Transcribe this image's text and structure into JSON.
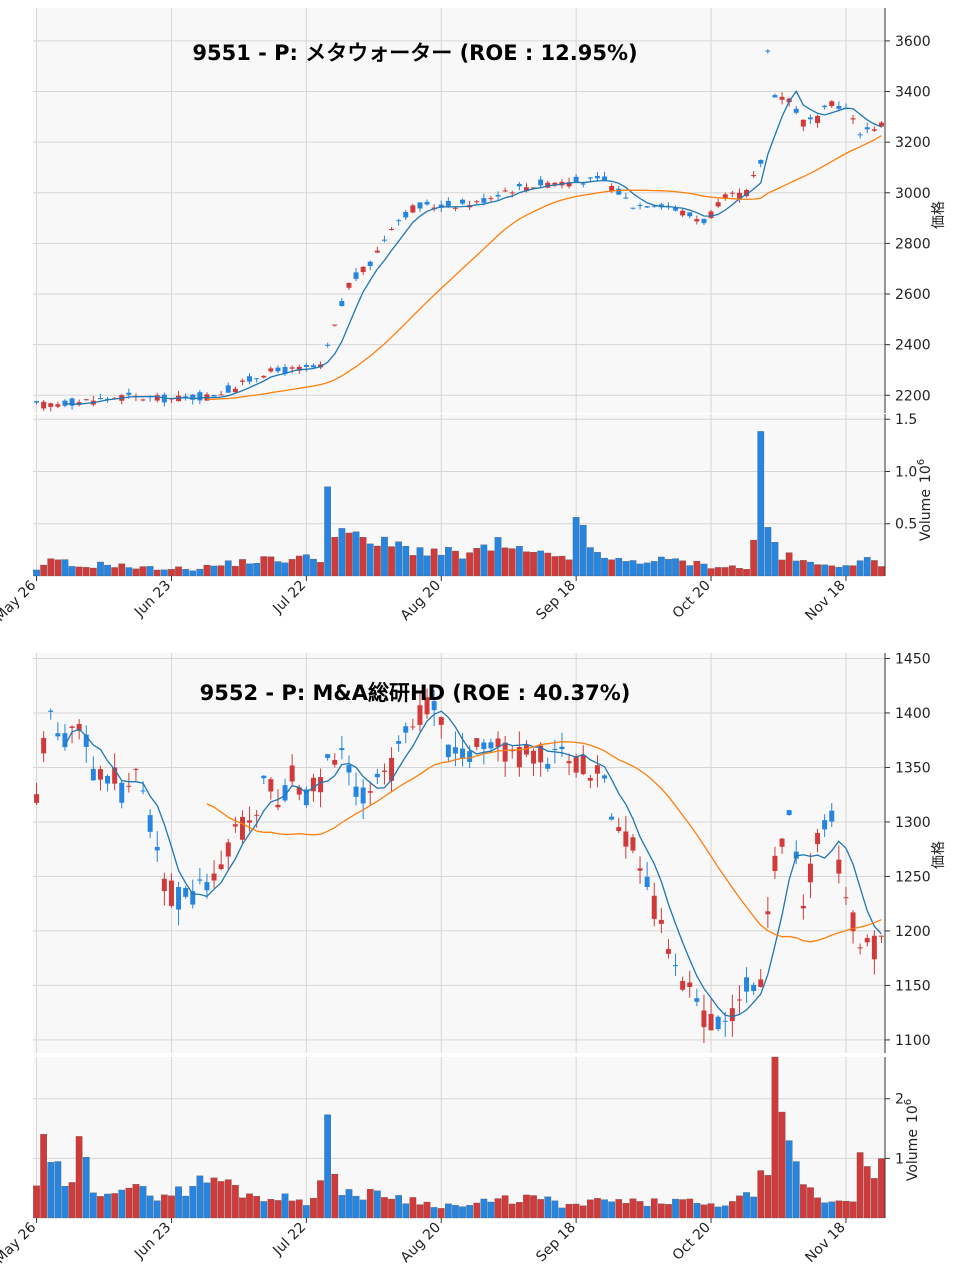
{
  "charts": [
    {
      "title": "9551 - P: メタウォーター (ROE : 12.95%)",
      "price_axis_label": "価格",
      "volume_axis_label": "Volume",
      "volume_axis_exp": "10",
      "volume_axis_exp_power": "6",
      "price_ticks": [
        "2200",
        "2400",
        "2600",
        "2800",
        "3000",
        "3200",
        "3400",
        "3600"
      ],
      "volume_ticks": [
        "0.5",
        "1.0",
        "1.5"
      ],
      "date_ticks": [
        "May 26",
        "Jun 23",
        "Jul 22",
        "Aug 20",
        "Sep 18",
        "Oct 20",
        "Nov 18"
      ]
    },
    {
      "title": "9552 - P: M&A総研HD (ROE : 40.37%)",
      "price_axis_label": "価格",
      "volume_axis_label": "Volume",
      "volume_axis_exp": "10",
      "volume_axis_exp_power": "6",
      "price_ticks": [
        "1100",
        "1150",
        "1200",
        "1250",
        "1300",
        "1350",
        "1400",
        "1450"
      ],
      "volume_ticks": [
        "1",
        "2"
      ],
      "date_ticks": [
        "May 26",
        "Jun 23",
        "Jul 22",
        "Aug 20",
        "Sep 18",
        "Oct 20",
        "Nov 18"
      ]
    }
  ],
  "colors": {
    "up": "#d03a3a",
    "down": "#2585e0",
    "ma_short": "#1f77b4",
    "ma_long": "#ff7f0e",
    "panel_bg": "#f8f8f8",
    "grid": "#d6d6d6"
  },
  "chart_data": [
    {
      "type": "candlestick",
      "title": "9551 - P: メタウォーター (ROE : 12.95%)",
      "ylabel": "価格",
      "ylim": [
        2130,
        3730
      ],
      "volume_ylim": [
        0,
        1.55
      ],
      "volume_unit": "10^6",
      "x_ticks": [
        "May 26",
        "Jun 23",
        "Jul 22",
        "Aug 20",
        "Sep 18",
        "Oct 20",
        "Nov 18"
      ],
      "x_tick_index": [
        0,
        19,
        38,
        57,
        76,
        95,
        114
      ],
      "anchors": [
        [
          0,
          2160
        ],
        [
          6,
          2175
        ],
        [
          12,
          2195
        ],
        [
          18,
          2185
        ],
        [
          24,
          2195
        ],
        [
          28,
          2230
        ],
        [
          32,
          2290
        ],
        [
          40,
          2310
        ],
        [
          42,
          2470
        ],
        [
          44,
          2640
        ],
        [
          47,
          2720
        ],
        [
          50,
          2870
        ],
        [
          53,
          2940
        ],
        [
          57,
          2950
        ],
        [
          62,
          2960
        ],
        [
          66,
          3010
        ],
        [
          72,
          3040
        ],
        [
          80,
          3050
        ],
        [
          84,
          2950
        ],
        [
          88,
          2960
        ],
        [
          92,
          2910
        ],
        [
          94,
          2890
        ],
        [
          97,
          2980
        ],
        [
          100,
          3000
        ],
        [
          102,
          3120
        ],
        [
          103,
          3560
        ],
        [
          104,
          3390
        ],
        [
          106,
          3370
        ],
        [
          108,
          3280
        ],
        [
          110,
          3290
        ],
        [
          112,
          3360
        ],
        [
          114,
          3330
        ],
        [
          116,
          3240
        ],
        [
          119,
          3270
        ]
      ],
      "volume_anchors": [
        [
          0,
          0.05
        ],
        [
          3,
          0.18
        ],
        [
          5,
          0.08
        ],
        [
          10,
          0.12
        ],
        [
          14,
          0.08
        ],
        [
          22,
          0.07
        ],
        [
          30,
          0.15
        ],
        [
          40,
          0.18
        ],
        [
          41,
          0.85
        ],
        [
          42,
          0.5
        ],
        [
          45,
          0.35
        ],
        [
          50,
          0.3
        ],
        [
          55,
          0.25
        ],
        [
          60,
          0.2
        ],
        [
          65,
          0.3
        ],
        [
          70,
          0.2
        ],
        [
          75,
          0.2
        ],
        [
          76,
          0.48
        ],
        [
          80,
          0.15
        ],
        [
          90,
          0.15
        ],
        [
          95,
          0.1
        ],
        [
          100,
          0.08
        ],
        [
          101,
          0.3
        ],
        [
          102,
          1.43
        ],
        [
          103,
          0.45
        ],
        [
          105,
          0.2
        ],
        [
          110,
          0.1
        ],
        [
          118,
          0.15
        ],
        [
          119,
          0.12
        ]
      ],
      "ma_short_period": 5,
      "ma_long_period": 25
    },
    {
      "type": "candlestick",
      "title": "9552 - P: M&A総研HD (ROE : 40.37%)",
      "ylabel": "価格",
      "ylim": [
        1088,
        1455
      ],
      "volume_ylim": [
        0,
        2.7
      ],
      "volume_unit": "10^6",
      "x_ticks": [
        "May 26",
        "Jun 23",
        "Jul 22",
        "Aug 20",
        "Sep 18",
        "Oct 20",
        "Nov 18"
      ],
      "x_tick_index": [
        0,
        19,
        38,
        57,
        76,
        95,
        114
      ],
      "anchors": [
        [
          0,
          1330
        ],
        [
          2,
          1400
        ],
        [
          4,
          1380
        ],
        [
          6,
          1395
        ],
        [
          8,
          1340
        ],
        [
          10,
          1345
        ],
        [
          12,
          1330
        ],
        [
          14,
          1340
        ],
        [
          16,
          1300
        ],
        [
          18,
          1240
        ],
        [
          20,
          1230
        ],
        [
          22,
          1225
        ],
        [
          24,
          1250
        ],
        [
          26,
          1260
        ],
        [
          28,
          1300
        ],
        [
          30,
          1290
        ],
        [
          32,
          1340
        ],
        [
          34,
          1320
        ],
        [
          36,
          1340
        ],
        [
          38,
          1320
        ],
        [
          40,
          1340
        ],
        [
          42,
          1360
        ],
        [
          44,
          1350
        ],
        [
          46,
          1320
        ],
        [
          48,
          1340
        ],
        [
          50,
          1350
        ],
        [
          52,
          1390
        ],
        [
          54,
          1400
        ],
        [
          56,
          1410
        ],
        [
          58,
          1365
        ],
        [
          60,
          1360
        ],
        [
          62,
          1370
        ],
        [
          64,
          1380
        ],
        [
          66,
          1365
        ],
        [
          68,
          1360
        ],
        [
          70,
          1360
        ],
        [
          72,
          1355
        ],
        [
          74,
          1360
        ],
        [
          76,
          1355
        ],
        [
          78,
          1350
        ],
        [
          80,
          1330
        ],
        [
          82,
          1300
        ],
        [
          84,
          1280
        ],
        [
          86,
          1240
        ],
        [
          88,
          1200
        ],
        [
          90,
          1170
        ],
        [
          92,
          1140
        ],
        [
          94,
          1120
        ],
        [
          96,
          1110
        ],
        [
          98,
          1125
        ],
        [
          100,
          1150
        ],
        [
          102,
          1160
        ],
        [
          104,
          1260
        ],
        [
          106,
          1300
        ],
        [
          108,
          1230
        ],
        [
          110,
          1280
        ],
        [
          112,
          1300
        ],
        [
          114,
          1230
        ],
        [
          116,
          1195
        ],
        [
          118,
          1185
        ],
        [
          119,
          1200
        ]
      ],
      "volume_anchors": [
        [
          0,
          0.6
        ],
        [
          1,
          1.15
        ],
        [
          2,
          0.9
        ],
        [
          5,
          0.5
        ],
        [
          6,
          1.25
        ],
        [
          8,
          0.5
        ],
        [
          12,
          0.55
        ],
        [
          16,
          0.4
        ],
        [
          20,
          0.45
        ],
        [
          25,
          0.7
        ],
        [
          30,
          0.4
        ],
        [
          38,
          0.3
        ],
        [
          40,
          0.6
        ],
        [
          41,
          1.55
        ],
        [
          42,
          0.6
        ],
        [
          45,
          0.4
        ],
        [
          50,
          0.4
        ],
        [
          55,
          0.25
        ],
        [
          60,
          0.2
        ],
        [
          65,
          0.3
        ],
        [
          70,
          0.35
        ],
        [
          75,
          0.2
        ],
        [
          80,
          0.3
        ],
        [
          85,
          0.25
        ],
        [
          90,
          0.3
        ],
        [
          95,
          0.2
        ],
        [
          100,
          0.35
        ],
        [
          103,
          0.8
        ],
        [
          104,
          2.55
        ],
        [
          105,
          1.45
        ],
        [
          107,
          0.85
        ],
        [
          110,
          0.3
        ],
        [
          115,
          0.3
        ],
        [
          116,
          1.3
        ],
        [
          118,
          0.9
        ],
        [
          119,
          1.0
        ]
      ],
      "ma_short_period": 5,
      "ma_long_period": 25
    }
  ]
}
